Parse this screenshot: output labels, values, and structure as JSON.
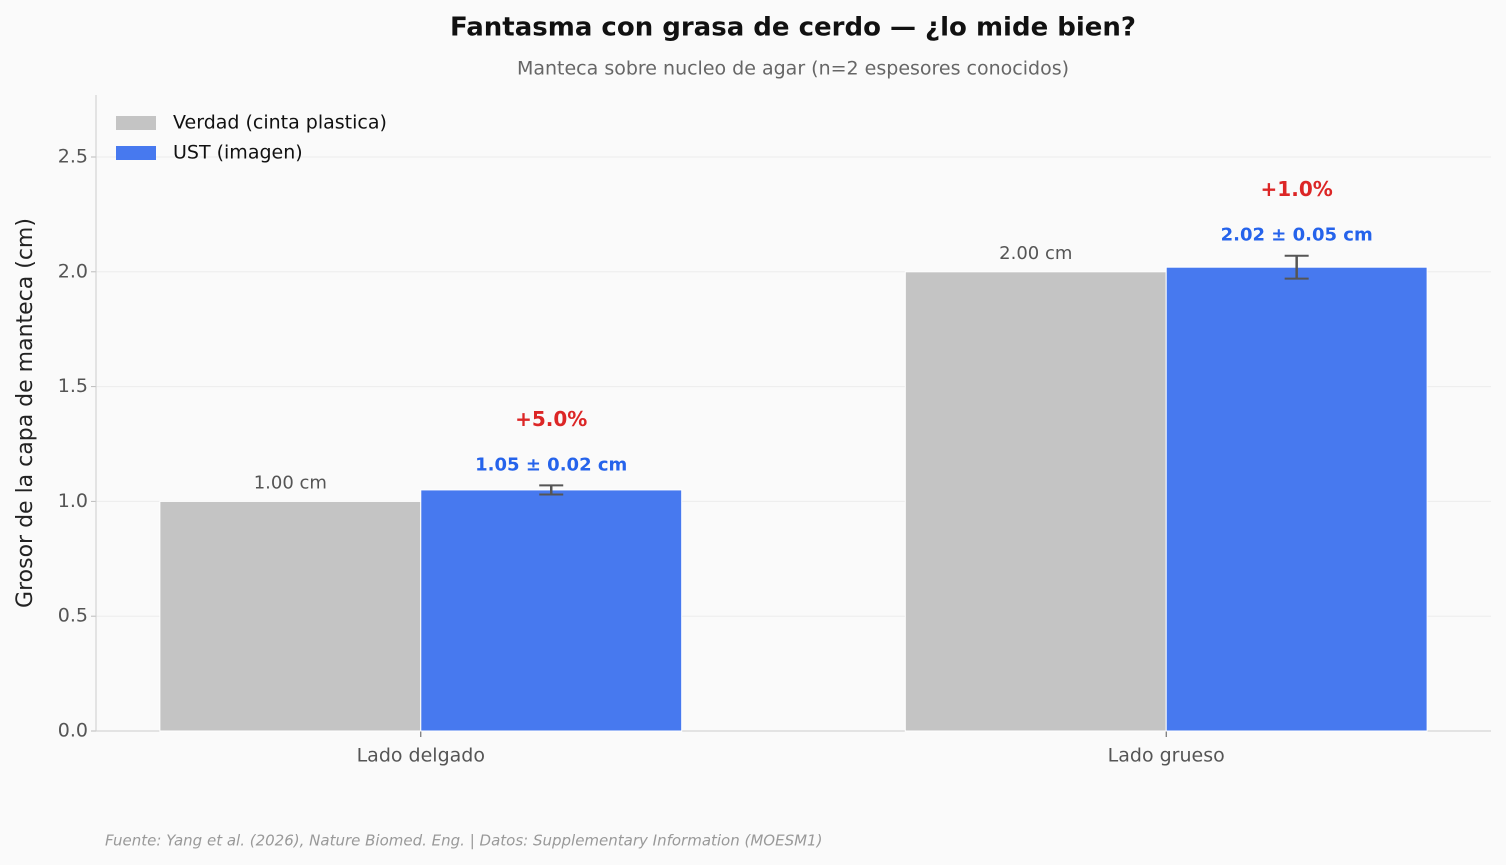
{
  "chart_data": {
    "type": "bar",
    "title": "Fantasma con grasa de cerdo — ¿lo mide bien?",
    "subtitle": "Manteca sobre nucleo de agar (n=2 espesores conocidos)",
    "y_label": "Grosor de la capa de manteca (cm)",
    "source": "Fuente: Yang et al. (2026), Nature Biomed. Eng. | Datos: Supplementary Information (MOESM1)",
    "categories": [
      "Lado delgado",
      "Lado grueso"
    ],
    "series": [
      {
        "name": "Verdad (cinta plastica)",
        "color": "#c4c4c4",
        "values": [
          1.0,
          2.0
        ],
        "value_labels": [
          "1.00 cm",
          "2.00 cm"
        ]
      },
      {
        "name": "UST (imagen)",
        "color": "#4779ef",
        "values": [
          1.05,
          2.02
        ],
        "errors": [
          0.02,
          0.05
        ],
        "value_labels": [
          "1.05 ± 0.02 cm",
          "2.02 ± 0.05 cm"
        ],
        "annotations": [
          "+5.0%",
          "+1.0%"
        ]
      }
    ],
    "ylim": [
      0,
      2.77
    ],
    "yticks": [
      {
        "value": 0,
        "label": "0.0"
      },
      0.5,
      {
        "value": 1,
        "label": "1.0"
      },
      1.5,
      {
        "value": 2,
        "label": "2.0"
      },
      2.5
    ],
    "grid": true,
    "legend": "upper-left"
  }
}
